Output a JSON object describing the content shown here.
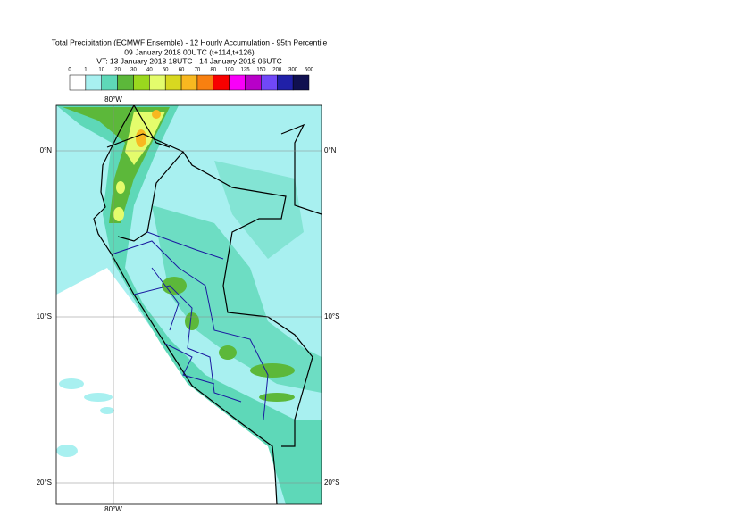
{
  "title": {
    "lines": [
      "Total Precipitation (ECMWF Ensemble) - 12 Hourly Accumulation - 95th Percentile",
      "09 January 2018 00UTC (t+114,t+126)",
      "VT: 13 January 2018 18UTC - 14 January 2018 06UTC"
    ]
  },
  "legend": {
    "labels": [
      "0",
      "1",
      "10",
      "20",
      "30",
      "40",
      "50",
      "60",
      "70",
      "80",
      "100",
      "125",
      "150",
      "200",
      "300",
      "500"
    ],
    "colors": [
      "#ffffff",
      "#a8f0f0",
      "#5ed8b8",
      "#5cb83a",
      "#9ad81e",
      "#e4fc6c",
      "#d8d820",
      "#f8b820",
      "#f88010",
      "#f80000",
      "#f800f8",
      "#b800c8",
      "#7048f8",
      "#2020a8",
      "#101050"
    ]
  },
  "map": {
    "lat_labels": [
      "0°N",
      "10°S",
      "20°S"
    ],
    "lon_labels": [
      "80°W"
    ]
  }
}
